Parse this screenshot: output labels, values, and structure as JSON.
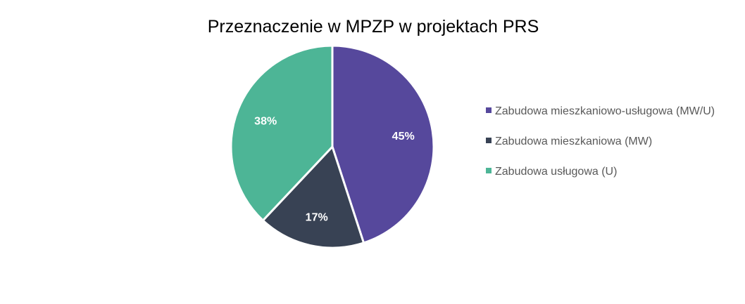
{
  "chart_data": {
    "type": "pie",
    "title": "Przeznaczenie  w MPZP w projektach PRS",
    "categories": [
      "Zabudowa mieszkaniowo-usługowa (MW/U)",
      "Zabudowa mieszkaniowa (MW)",
      "Zabudowa usługowa (U)"
    ],
    "values": [
      45,
      17,
      38
    ],
    "value_labels": [
      "45%",
      "17%",
      "38%"
    ],
    "colors": [
      "#56489c",
      "#384254",
      "#4db596"
    ],
    "legend_position": "right",
    "start_angle": "top, clockwise"
  }
}
